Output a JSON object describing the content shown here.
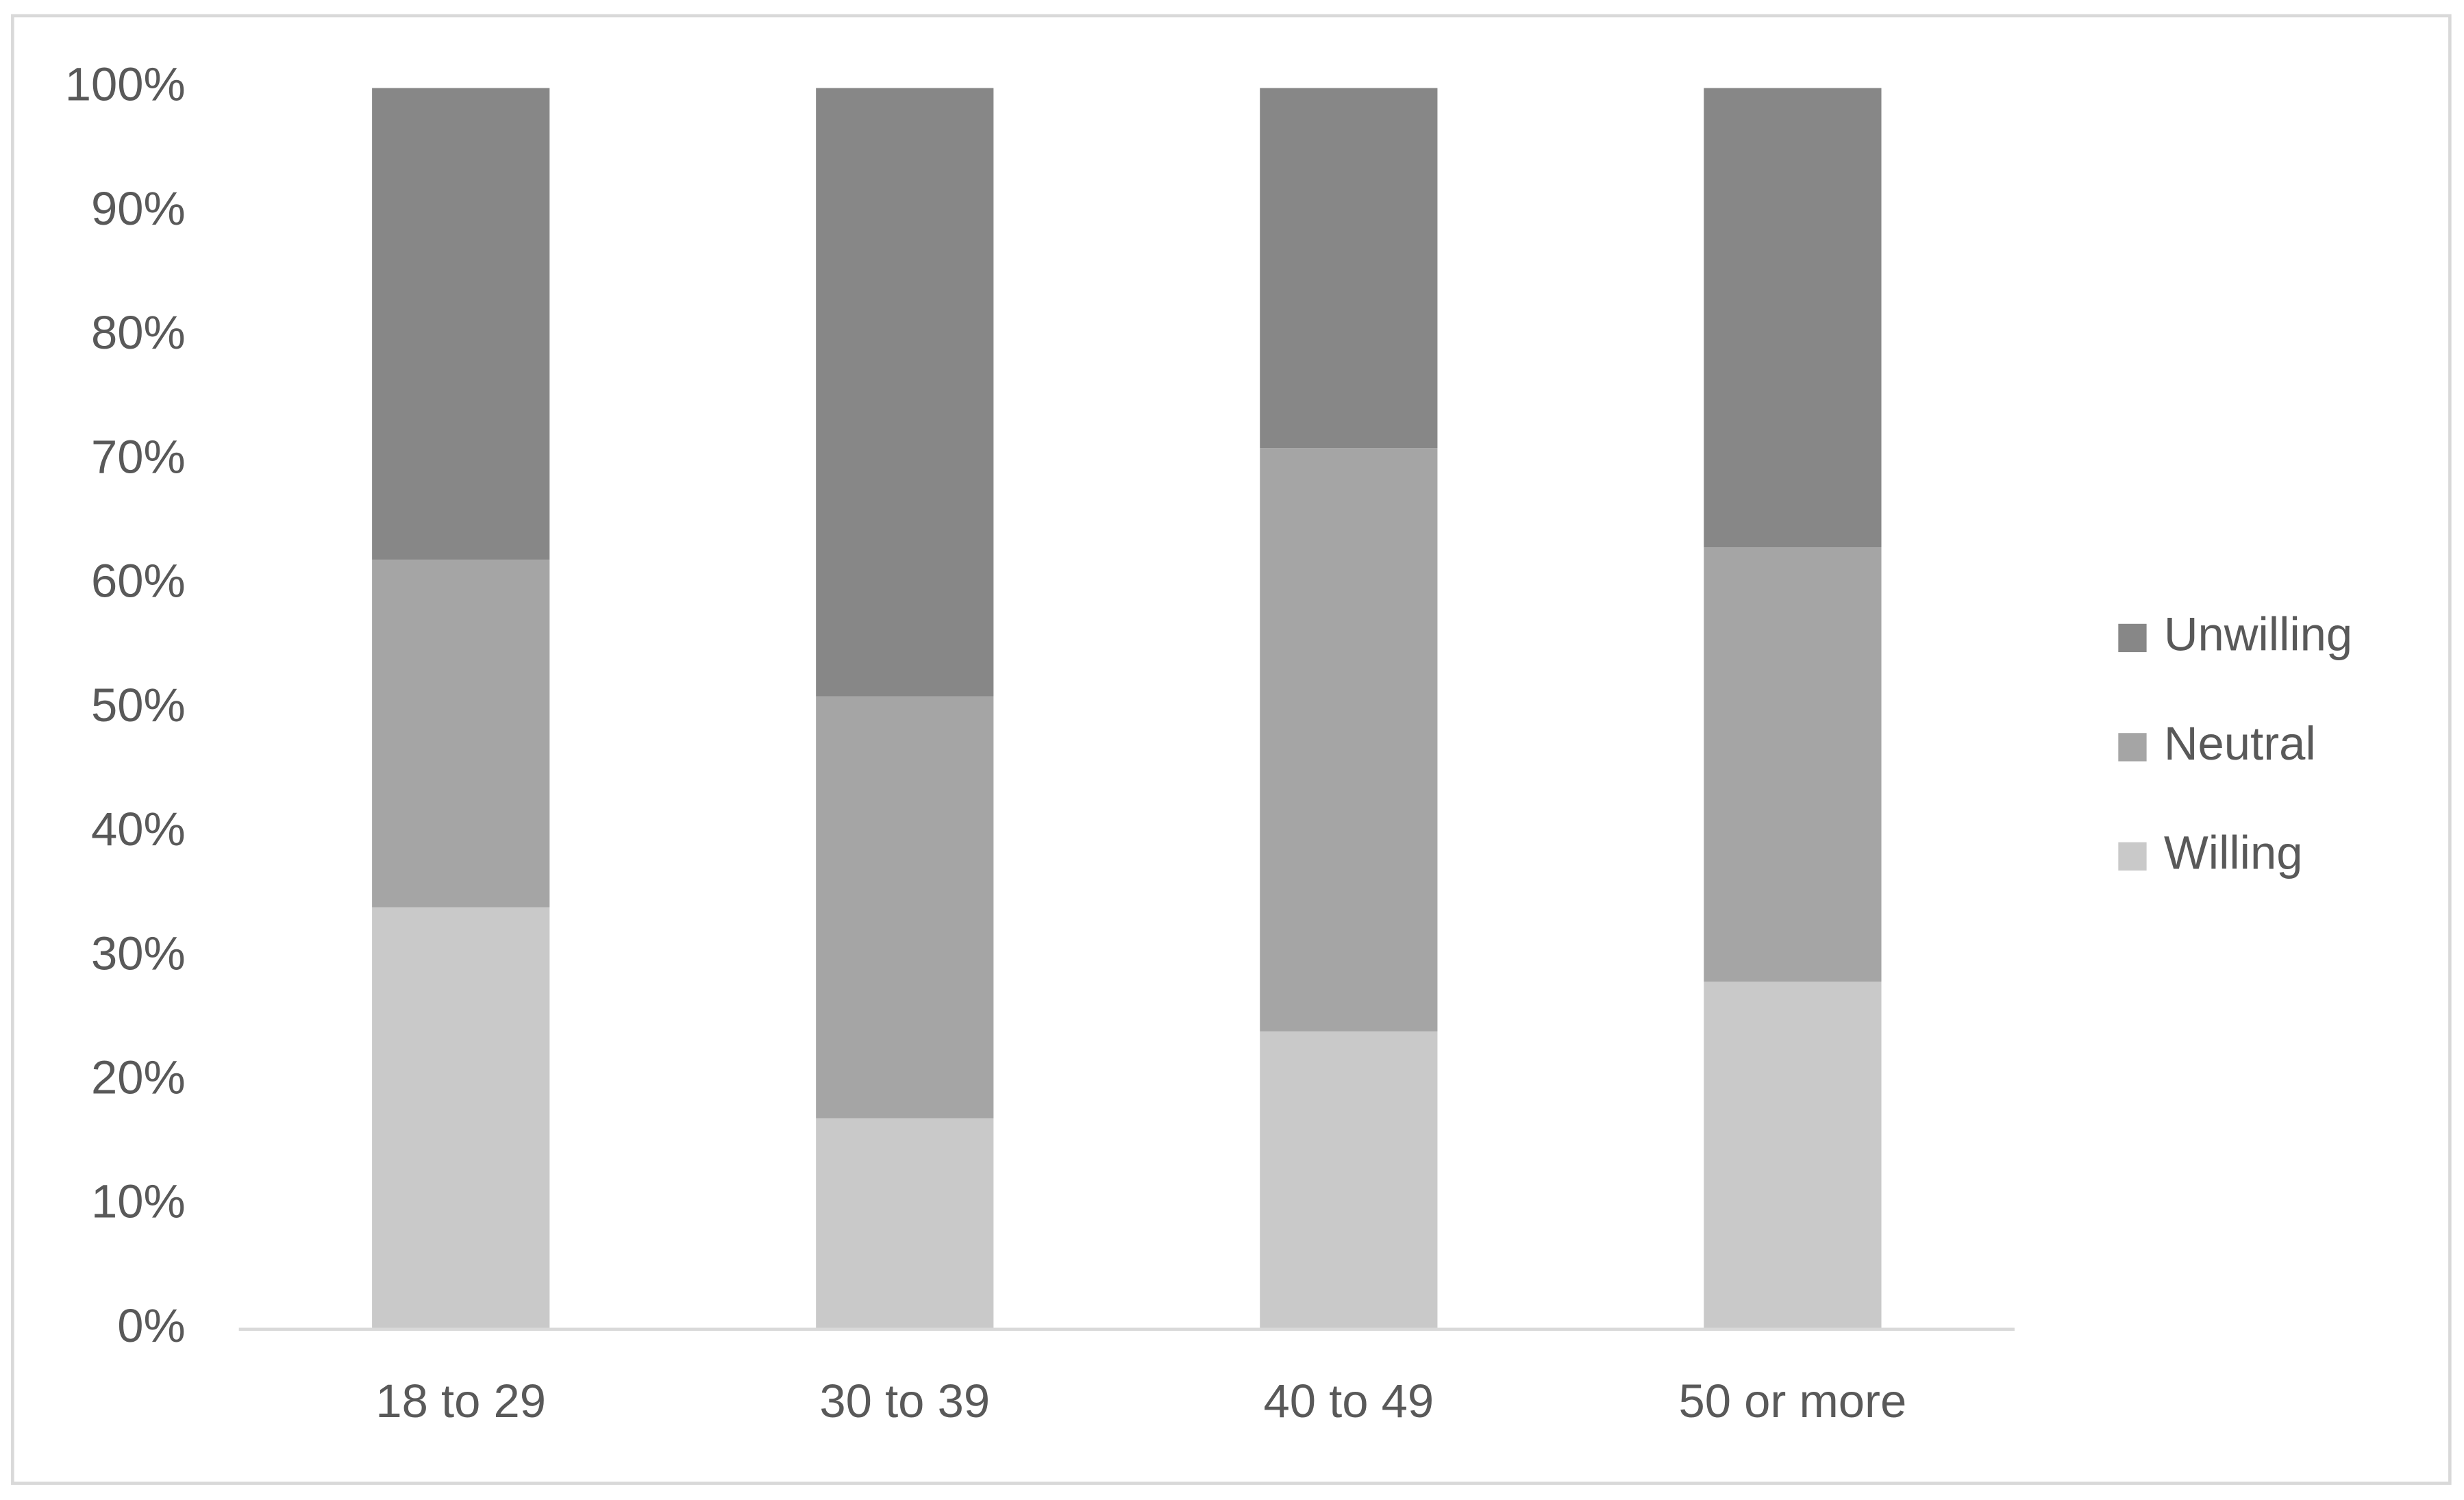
{
  "chart_data": {
    "type": "stacked_bar",
    "categories": [
      "18 to 29",
      "30 to 39",
      "40 to 49",
      "50 or more"
    ],
    "series": [
      {
        "name": "Willing",
        "color": "#c9c9c9",
        "values": [
          34,
          17,
          24,
          28
        ]
      },
      {
        "name": "Neutral",
        "color": "#a5a5a5",
        "values": [
          28,
          34,
          47,
          35
        ]
      },
      {
        "name": "Unwilling",
        "color": "#878787",
        "values": [
          38,
          49,
          29,
          37
        ]
      }
    ],
    "ylim": [
      0,
      100
    ],
    "yticks": [
      {
        "value": 0,
        "label": "0%"
      },
      {
        "value": 10,
        "label": "10%"
      },
      {
        "value": 20,
        "label": "20%"
      },
      {
        "value": 30,
        "label": "30%"
      },
      {
        "value": 40,
        "label": "40%"
      },
      {
        "value": 50,
        "label": "50%"
      },
      {
        "value": 60,
        "label": "60%"
      },
      {
        "value": 70,
        "label": "70%"
      },
      {
        "value": 80,
        "label": "80%"
      },
      {
        "value": 90,
        "label": "90%"
      },
      {
        "value": 100,
        "label": "100%"
      }
    ],
    "grid": false,
    "legend": "right"
  }
}
